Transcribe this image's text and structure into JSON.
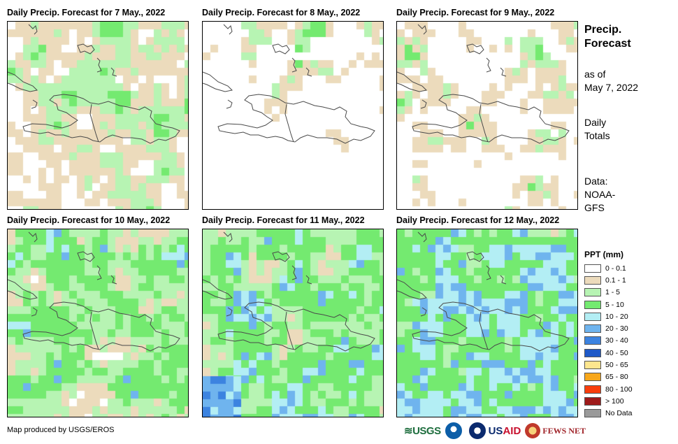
{
  "panels": [
    {
      "title": "Daily Precip. Forecast for 7 May., 2022",
      "seed": 11,
      "profile": "d7"
    },
    {
      "title": "Daily Precip. Forecast for 8 May., 2022",
      "seed": 23,
      "profile": "d8"
    },
    {
      "title": "Daily Precip. Forecast for 9 May., 2022",
      "seed": 37,
      "profile": "d9"
    },
    {
      "title": "Daily Precip. Forecast for 10 May., 2022",
      "seed": 41,
      "profile": "d10"
    },
    {
      "title": "Daily Precip. Forecast for 11 May., 2022",
      "seed": 53,
      "profile": "d11"
    },
    {
      "title": "Daily Precip. Forecast for 12 May., 2022",
      "seed": 67,
      "profile": "d12"
    }
  ],
  "side": {
    "heading_line1": "Precip.",
    "heading_line2": "Forecast",
    "asof_line1": "as of",
    "asof_line2": "May 7, 2022",
    "totals_line1": "Daily",
    "totals_line2": "Totals",
    "data_line1": "Data:",
    "data_line2": "NOAA-",
    "data_line3": "GFS"
  },
  "legend": {
    "title": "PPT (mm)",
    "classes": [
      {
        "label": "0 - 0.1",
        "color": "#ffffff"
      },
      {
        "label": "0.1 - 1",
        "color": "#ecdbbc"
      },
      {
        "label": "1 - 5",
        "color": "#b7f4b3"
      },
      {
        "label": "5 - 10",
        "color": "#74ea70"
      },
      {
        "label": "10 - 20",
        "color": "#b3eef4"
      },
      {
        "label": "20 - 30",
        "color": "#6fb4ee"
      },
      {
        "label": "30 - 40",
        "color": "#3c83e0"
      },
      {
        "label": "40 - 50",
        "color": "#1e59c8"
      },
      {
        "label": "50 - 65",
        "color": "#fde68e"
      },
      {
        "label": "65 - 80",
        "color": "#f8a71a"
      },
      {
        "label": "80 - 100",
        "color": "#f83d0c"
      },
      {
        "label": "> 100",
        "color": "#9e1a1a"
      },
      {
        "label": "No Data",
        "color": "#9a9a9a"
      }
    ]
  },
  "credit": "Map produced by USGS/EROS",
  "logos": {
    "usgs": "USGS",
    "usaid_us": "US",
    "usaid_aid": "AID",
    "fews": "FEWS NET"
  }
}
